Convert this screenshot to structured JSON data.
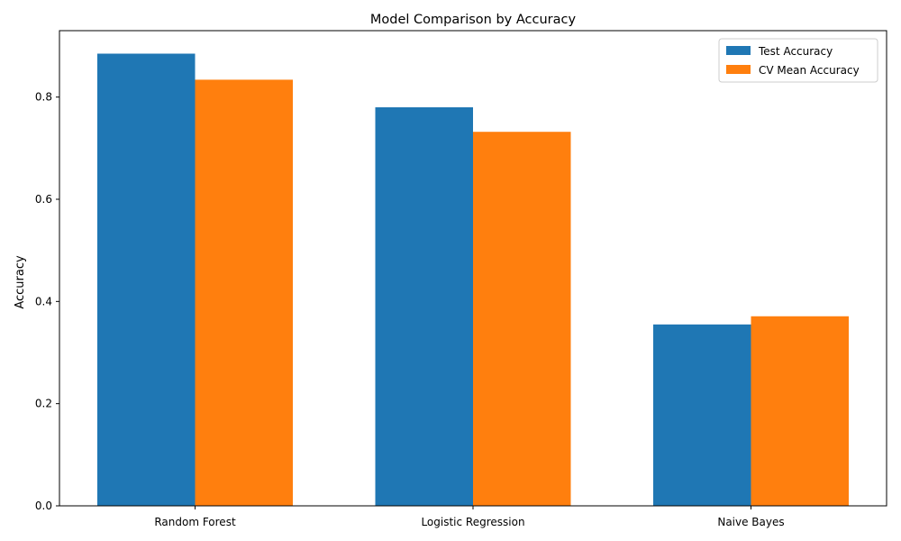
{
  "chart_data": {
    "type": "bar",
    "title": "Model Comparison by Accuracy",
    "xlabel": "",
    "ylabel": "Accuracy",
    "categories": [
      "Random Forest",
      "Logistic Regression",
      "Naive Bayes"
    ],
    "series": [
      {
        "name": "Test Accuracy",
        "values": [
          0.885,
          0.78,
          0.355
        ],
        "color": "#1f77b4"
      },
      {
        "name": "CV Mean Accuracy",
        "values": [
          0.834,
          0.732,
          0.371
        ],
        "color": "#ff7f0e"
      }
    ],
    "ylim": [
      0,
      0.93
    ],
    "yticks": [
      0.0,
      0.2,
      0.4,
      0.6,
      0.8
    ],
    "ytick_labels": [
      "0.0",
      "0.2",
      "0.4",
      "0.6",
      "0.8"
    ],
    "grid": false,
    "legend_position": "top-right"
  }
}
